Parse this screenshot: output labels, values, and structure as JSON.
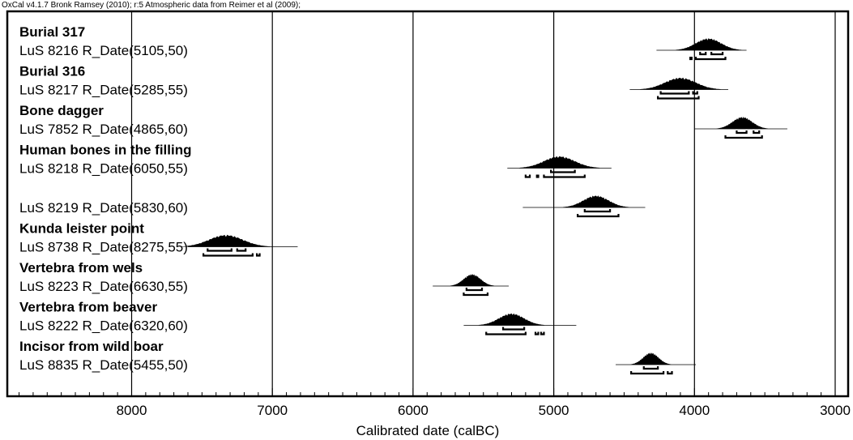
{
  "chart_data": {
    "type": "multiplot",
    "header": "OxCal v4.1.7 Bronk Ramsey (2010); r:5 Atmospheric data from Reimer et al (2009);",
    "xlabel": "Calibrated date (calBC)",
    "xlim": [
      8900,
      2900
    ],
    "x_ticks": [
      8000,
      7000,
      6000,
      5000,
      4000,
      3000
    ],
    "grid": "vertical-at-ticks",
    "color": "#000000",
    "series": [
      {
        "group": "Burial 317",
        "label": "LuS 8216 R_Date(5105,50)",
        "peak": 3900,
        "spread": 90,
        "line": [
          4270,
          3630
        ],
        "hpd68": [
          [
            3960,
            3920
          ],
          [
            3880,
            3800
          ]
        ],
        "hpd95": [
          [
            4030,
            4020
          ],
          [
            3990,
            3780
          ]
        ]
      },
      {
        "group": "Burial 316",
        "label": "LuS 8217 R_Date(5285,55)",
        "peak": 4100,
        "spread": 110,
        "line": [
          4460,
          3760
        ],
        "hpd68": [
          [
            4240,
            4040
          ],
          [
            4010,
            3980
          ]
        ],
        "hpd95": [
          [
            4260,
            3970
          ]
        ]
      },
      {
        "group": "Bone dagger",
        "label": "LuS 7852 R_Date(4865,60)",
        "peak": 3660,
        "spread": 70,
        "line": [
          4000,
          3340
        ],
        "hpd68": [
          [
            3700,
            3630
          ],
          [
            3580,
            3540
          ]
        ],
        "hpd95": [
          [
            3780,
            3520
          ]
        ]
      },
      {
        "group": "Human bones in the filling",
        "label": "LuS 8218 R_Date(6050,55)",
        "peak": 4960,
        "spread": 110,
        "line": [
          5330,
          4590
        ],
        "hpd68": [
          [
            5020,
            4850
          ]
        ],
        "hpd95": [
          [
            5200,
            5170
          ],
          [
            5120,
            5110
          ],
          [
            5070,
            4780
          ]
        ]
      },
      {
        "group": "",
        "label": "LuS 8219 R_Date(5830,60)",
        "peak": 4700,
        "spread": 90,
        "line": [
          5220,
          4350
        ],
        "hpd68": [
          [
            4780,
            4600
          ]
        ],
        "hpd95": [
          [
            4830,
            4540
          ]
        ]
      },
      {
        "group": "Kunda leister point",
        "label": "LuS 8738 R_Date(8275,55)",
        "peak": 7330,
        "spread": 120,
        "line": [
          7600,
          6820
        ],
        "hpd68": [
          [
            7460,
            7290
          ],
          [
            7250,
            7190
          ]
        ],
        "hpd95": [
          [
            7490,
            7140
          ],
          [
            7110,
            7090
          ]
        ]
      },
      {
        "group": "Vertebra from wels",
        "label": "LuS 8223 R_Date(6630,55)",
        "peak": 5580,
        "spread": 60,
        "line": [
          5860,
          5320
        ],
        "hpd68": [
          [
            5620,
            5510
          ]
        ],
        "hpd95": [
          [
            5640,
            5470
          ]
        ]
      },
      {
        "group": "Vertebra from beaver",
        "label": "LuS 8222 R_Date(6320,60)",
        "peak": 5300,
        "spread": 90,
        "line": [
          5640,
          4840
        ],
        "hpd68": [
          [
            5360,
            5210
          ]
        ],
        "hpd95": [
          [
            5480,
            5200
          ],
          [
            5130,
            5110
          ],
          [
            5090,
            5070
          ]
        ]
      },
      {
        "group": "Incisor from wild boar",
        "label": "LuS 8835 R_Date(5455,50)",
        "peak": 4310,
        "spread": 55,
        "line": [
          4560,
          3990
        ],
        "hpd68": [
          [
            4360,
            4260
          ]
        ],
        "hpd95": [
          [
            4450,
            4220
          ],
          [
            4190,
            4160
          ]
        ]
      }
    ]
  }
}
